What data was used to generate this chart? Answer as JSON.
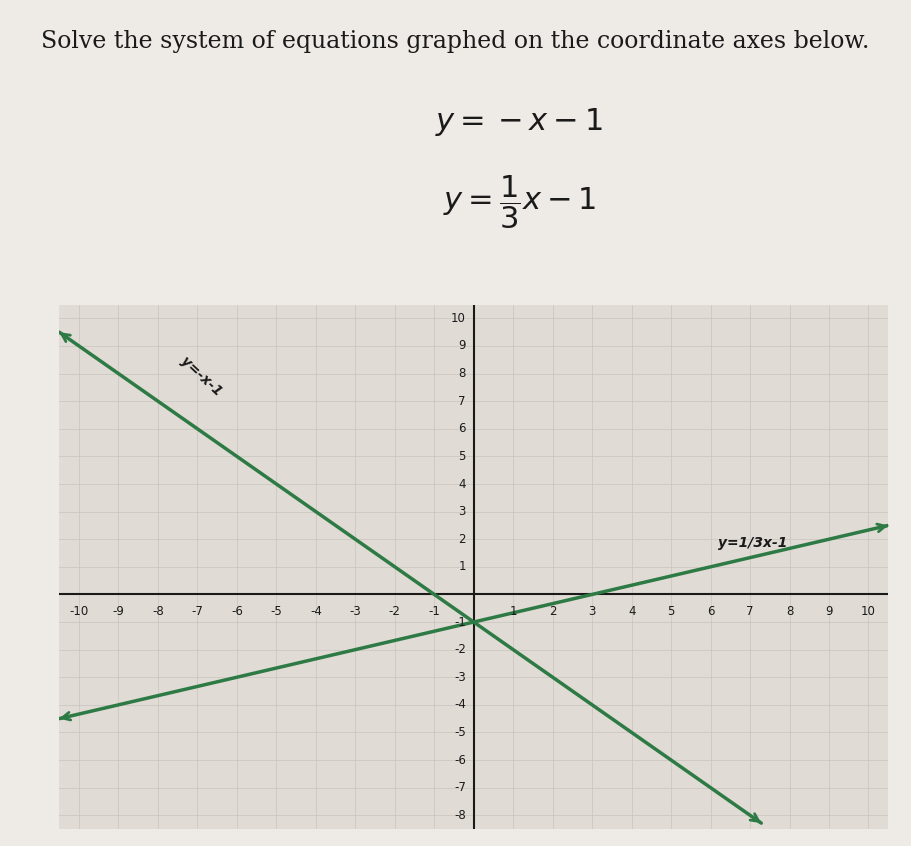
{
  "title": "Solve the system of equations graphed on the coordinate axes below.",
  "eq1_label": "y=-x-1",
  "eq2_label": "y=1/3x-1",
  "line_color": "#2d7a45",
  "bg_color": "#eeebe6",
  "plot_bg": "#e0dbd4",
  "grid_color": "#c8c4be",
  "axis_color": "#1a1a1a",
  "text_color": "#1a1a1a",
  "xmin": -10,
  "xmax": 10,
  "ymin": -8,
  "ymax": 10,
  "line1_slope": -1,
  "line1_intercept": -1,
  "line2_slope": 0.3333333333,
  "line2_intercept": -1,
  "figsize": [
    9.11,
    8.46
  ],
  "dpi": 100
}
